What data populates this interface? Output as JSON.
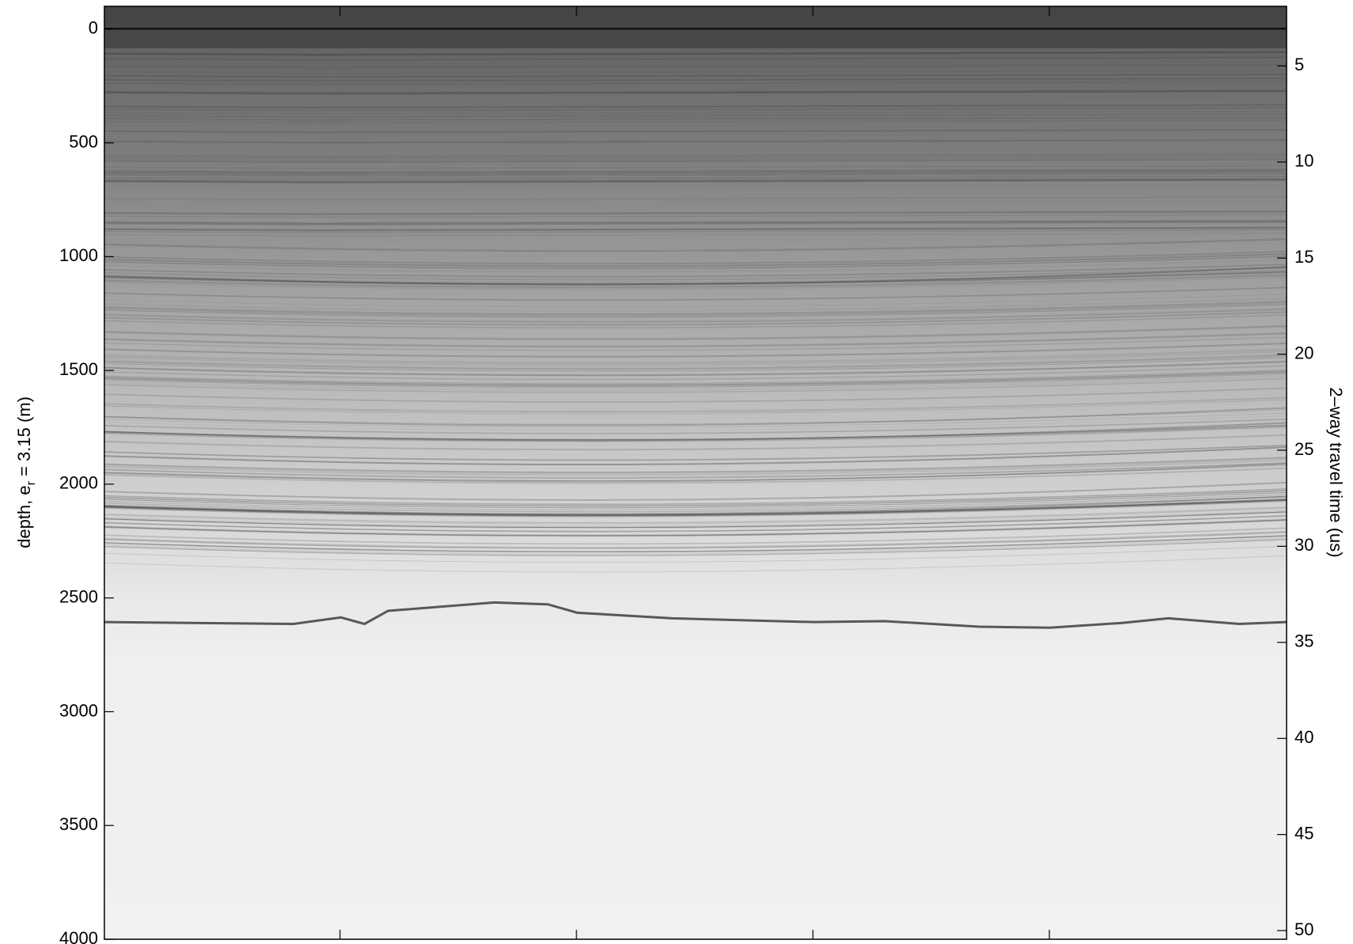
{
  "chart_data": {
    "type": "radargram",
    "ylabel": {
      "text": "depth, e",
      "subscript": "r",
      "suffix": " = 3.15 (m)"
    },
    "y2label": "2–way travel time (us)",
    "ylim": [
      -100,
      4000
    ],
    "yticks": [
      0,
      500,
      1000,
      1500,
      2000,
      2500,
      3000,
      3500,
      4000
    ],
    "y2lim": [
      1.9,
      50.45
    ],
    "y2ticks": [
      5,
      10,
      15,
      20,
      25,
      30,
      35,
      40,
      45,
      50
    ],
    "colormap": "gray"
  }
}
